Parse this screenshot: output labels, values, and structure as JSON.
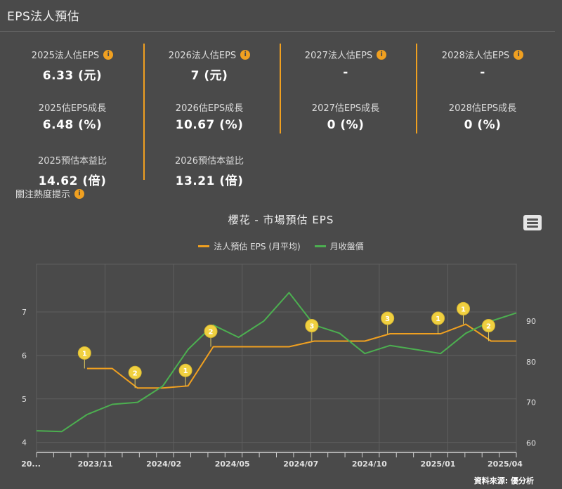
{
  "header": {
    "title": "EPS法人預估"
  },
  "stats": {
    "col2025": {
      "est_label": "2025法人估EPS",
      "est_value": "6.33 (元)",
      "growth_label": "2025估EPS成長",
      "growth_value": "6.48 (%)",
      "pe_label": "2025預估本益比",
      "pe_value": "14.62 (倍)"
    },
    "col2026": {
      "est_label": "2026法人估EPS",
      "est_value": "7 (元)",
      "growth_label": "2026估EPS成長",
      "growth_value": "10.67 (%)",
      "pe_label": "2026預估本益比",
      "pe_value": "13.21 (倍)"
    },
    "col2027": {
      "est_label": "2027法人估EPS",
      "est_value": "-",
      "growth_label": "2027估EPS成長",
      "growth_value": "0 (%)"
    },
    "col2028": {
      "est_label": "2028法人估EPS",
      "est_value": "-",
      "growth_label": "2028估EPS成長",
      "growth_value": "0 (%)"
    },
    "info_glyph": "i"
  },
  "hint": {
    "label": "關注熱度提示"
  },
  "source": "資料來源: 優分析",
  "colors": {
    "eps": "#f0a020",
    "price": "#4caf50",
    "accent": "#f0a020",
    "marker": "#f0d040"
  },
  "chart_data": {
    "type": "line",
    "title": "櫻花 - 市場預估 EPS",
    "legend": [
      "法人預估 EPS (月平均)",
      "月收盤價"
    ],
    "x_tick_labels": [
      "20...",
      "2023/11",
      "2024/02",
      "2024/05",
      "2024/07",
      "2024/10",
      "2025/01",
      "2025/04"
    ],
    "y_left": {
      "ticks": [
        4,
        5,
        6,
        7
      ],
      "range": [
        3.8,
        8.1
      ]
    },
    "y_right": {
      "ticks": [
        60,
        70,
        80,
        90
      ],
      "range": [
        58,
        104
      ]
    },
    "series": [
      {
        "name": "法人預估 EPS (月平均)",
        "axis": "left",
        "step": true,
        "points": [
          {
            "m": 2.0,
            "v": 5.7
          },
          {
            "m": 3.0,
            "v": 5.7
          },
          {
            "m": 4.0,
            "v": 5.25
          },
          {
            "m": 5.0,
            "v": 5.25
          },
          {
            "m": 6.0,
            "v": 5.3
          },
          {
            "m": 7.0,
            "v": 6.2
          },
          {
            "m": 8.0,
            "v": 6.2
          },
          {
            "m": 9.0,
            "v": 6.2
          },
          {
            "m": 10.0,
            "v": 6.2
          },
          {
            "m": 11.0,
            "v": 6.33
          },
          {
            "m": 12.0,
            "v": 6.33
          },
          {
            "m": 13.0,
            "v": 6.33
          },
          {
            "m": 14.0,
            "v": 6.5
          },
          {
            "m": 15.0,
            "v": 6.5
          },
          {
            "m": 16.0,
            "v": 6.5
          },
          {
            "m": 17.0,
            "v": 6.72
          },
          {
            "m": 18.0,
            "v": 6.33
          },
          {
            "m": 19.0,
            "v": 6.33
          }
        ]
      },
      {
        "name": "月收盤價",
        "axis": "right",
        "points": [
          {
            "m": 0.0,
            "v": 63.0
          },
          {
            "m": 1.0,
            "v": 62.8
          },
          {
            "m": 2.0,
            "v": 67.0
          },
          {
            "m": 3.0,
            "v": 69.5
          },
          {
            "m": 4.0,
            "v": 70.0
          },
          {
            "m": 5.0,
            "v": 74.0
          },
          {
            "m": 6.0,
            "v": 83.0
          },
          {
            "m": 7.0,
            "v": 89.0
          },
          {
            "m": 8.0,
            "v": 86.0
          },
          {
            "m": 9.0,
            "v": 90.0
          },
          {
            "m": 10.0,
            "v": 97.0
          },
          {
            "m": 11.0,
            "v": 89.0
          },
          {
            "m": 12.0,
            "v": 87.0
          },
          {
            "m": 13.0,
            "v": 82.0
          },
          {
            "m": 14.0,
            "v": 84.0
          },
          {
            "m": 15.0,
            "v": 83.0
          },
          {
            "m": 16.0,
            "v": 82.0
          },
          {
            "m": 17.0,
            "v": 87.0
          },
          {
            "m": 18.0,
            "v": 90.0
          },
          {
            "m": 19.0,
            "v": 92.0
          }
        ]
      }
    ],
    "flags": [
      {
        "m": 1.9,
        "eps": 5.7,
        "label": "1"
      },
      {
        "m": 3.9,
        "eps": 5.25,
        "label": "2"
      },
      {
        "m": 5.9,
        "eps": 5.3,
        "label": "1"
      },
      {
        "m": 6.9,
        "eps": 6.2,
        "label": "2"
      },
      {
        "m": 10.9,
        "eps": 6.33,
        "label": "3"
      },
      {
        "m": 13.9,
        "eps": 6.5,
        "label": "3"
      },
      {
        "m": 15.9,
        "eps": 6.5,
        "label": "1"
      },
      {
        "m": 16.9,
        "eps": 6.72,
        "label": "1"
      },
      {
        "m": 17.9,
        "eps": 6.33,
        "label": "2"
      }
    ]
  }
}
